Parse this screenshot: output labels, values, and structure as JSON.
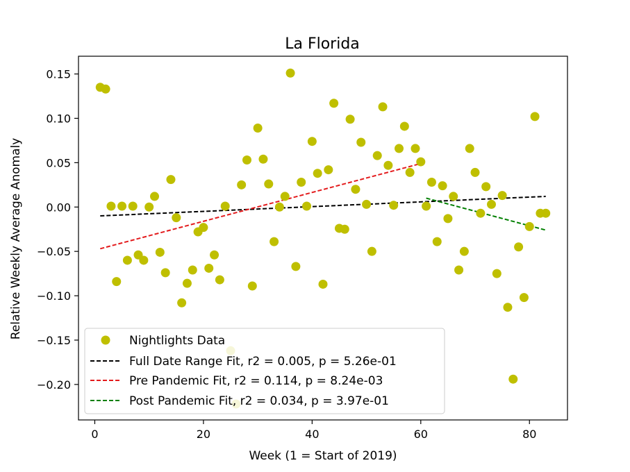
{
  "chart_data": {
    "type": "scatter",
    "title": "La Florida",
    "xlabel": "Week (1 = Start of 2019)",
    "ylabel": "Relative Weekly Average Anomaly",
    "xlim": [
      -3,
      87
    ],
    "ylim": [
      -0.24,
      0.17
    ],
    "xticks": [
      0,
      20,
      40,
      60,
      80
    ],
    "yticks": [
      0.15,
      0.1,
      0.05,
      0.0,
      -0.05,
      -0.1,
      -0.15,
      -0.2
    ],
    "xtick_labels": [
      "0",
      "20",
      "40",
      "60",
      "80"
    ],
    "ytick_labels": [
      "0.15",
      "0.10",
      "0.05",
      "0.00",
      "−0.05",
      "−0.10",
      "−0.15",
      "−0.20"
    ],
    "grid": false,
    "legend_position": "lower-left",
    "points": {
      "name": "Nightlights Data",
      "color": "#bfbf00",
      "x": [
        1,
        2,
        3,
        4,
        5,
        6,
        7,
        8,
        9,
        10,
        11,
        12,
        13,
        14,
        15,
        16,
        17,
        18,
        19,
        20,
        21,
        22,
        23,
        24,
        25,
        26,
        27,
        28,
        29,
        30,
        31,
        32,
        33,
        34,
        35,
        36,
        37,
        38,
        39,
        40,
        41,
        42,
        43,
        44,
        45,
        46,
        47,
        48,
        49,
        50,
        51,
        52,
        53,
        54,
        55,
        56,
        57,
        58,
        59,
        60,
        61,
        62,
        63,
        64,
        65,
        66,
        67,
        68,
        69,
        70,
        71,
        72,
        73,
        74,
        75,
        76,
        77,
        78,
        79,
        80,
        81,
        82,
        83
      ],
      "y": [
        0.135,
        0.133,
        0.001,
        -0.084,
        0.001,
        -0.06,
        0.001,
        -0.054,
        -0.06,
        0.0,
        0.012,
        -0.051,
        -0.074,
        0.031,
        -0.012,
        -0.108,
        -0.086,
        -0.071,
        -0.028,
        -0.023,
        -0.069,
        -0.054,
        -0.082,
        0.001,
        -0.162,
        -0.222,
        0.025,
        0.053,
        -0.089,
        0.089,
        0.054,
        0.026,
        -0.039,
        0.0,
        0.012,
        0.151,
        -0.067,
        0.028,
        0.001,
        0.074,
        0.038,
        -0.087,
        0.042,
        0.117,
        -0.024,
        -0.025,
        0.099,
        0.02,
        0.073,
        0.003,
        -0.05,
        0.058,
        0.113,
        0.047,
        0.002,
        0.066,
        0.091,
        0.039,
        0.066,
        0.051,
        0.001,
        0.028,
        -0.039,
        0.024,
        -0.013,
        0.012,
        -0.071,
        -0.05,
        0.066,
        0.039,
        -0.007,
        0.023,
        0.003,
        -0.075,
        0.013,
        -0.113,
        -0.194,
        -0.045,
        -0.102,
        -0.022,
        0.102,
        -0.007,
        -0.007
      ]
    },
    "lines": [
      {
        "name": "Full Date Range Fit, r2 = 0.005, p = 5.26e-01",
        "color": "#000000",
        "x": [
          1,
          83
        ],
        "y": [
          -0.01,
          0.012
        ]
      },
      {
        "name": "Pre Pandemic Fit, r2 = 0.114, p = 8.24e-03",
        "color": "#e31a1c",
        "x": [
          1,
          60
        ],
        "y": [
          -0.047,
          0.049
        ]
      },
      {
        "name": "Post Pandemic Fit, r2 = 0.034, p = 3.97e-01",
        "color": "#007f00",
        "x": [
          61,
          83
        ],
        "y": [
          0.01,
          -0.026
        ]
      }
    ]
  }
}
